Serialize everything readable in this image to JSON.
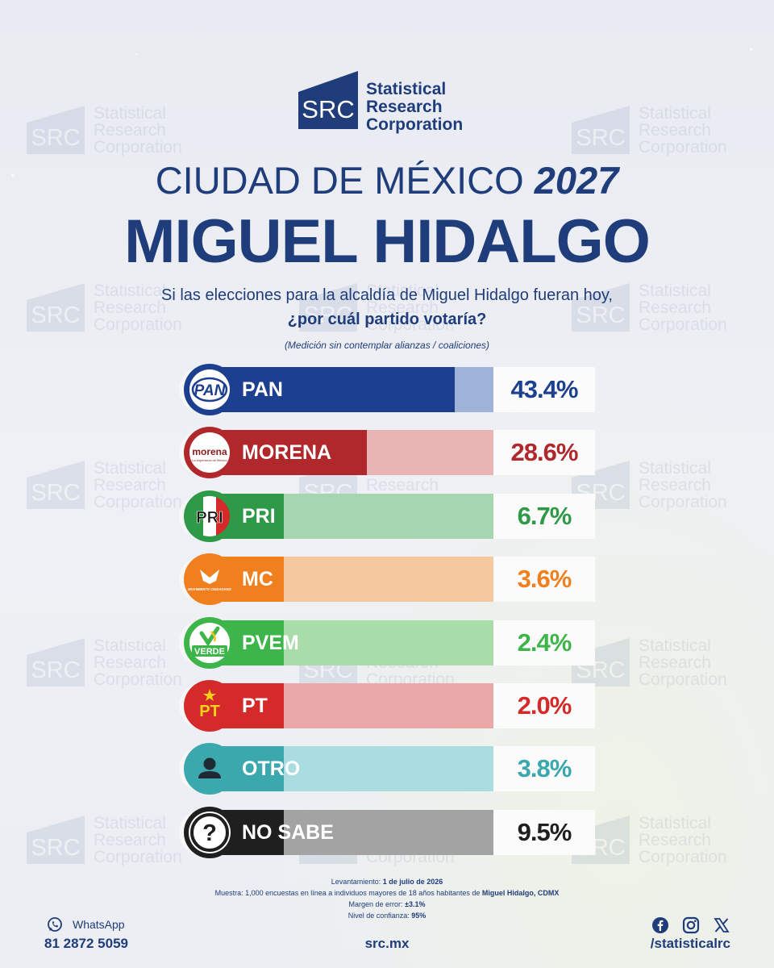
{
  "brand": {
    "logo_mark": "SRC",
    "name_lines": [
      "Statistical",
      "Research",
      "Corporation"
    ]
  },
  "title": {
    "line1_prefix": "CIUDAD DE MÉXICO",
    "line1_year": "2027",
    "line2": "MIGUEL HIDALGO"
  },
  "question": {
    "line1": "Si las elecciones para la alcaldía de Miguel Hidalgo fueran hoy,",
    "line2": "¿por cuál partido votaría?",
    "note": "(Medición sin contemplar alianzas / coaliciones)"
  },
  "chart_data": {
    "type": "bar",
    "orientation": "horizontal",
    "categories": [
      "PAN",
      "MORENA",
      "PRI",
      "MC",
      "PVEM",
      "PT",
      "OTRO",
      "NO SABE"
    ],
    "values": [
      43.4,
      28.6,
      6.7,
      3.6,
      2.4,
      2.0,
      3.8,
      9.5
    ],
    "value_labels": [
      "43.4%",
      "28.6%",
      "6.7%",
      "3.6%",
      "2.4%",
      "2.0%",
      "3.8%",
      "9.5%"
    ],
    "xlim": [
      0,
      50
    ],
    "colors": [
      "#1c3f8f",
      "#b0282c",
      "#2e9a47",
      "#f07f1e",
      "#3eb54a",
      "#d42a2a",
      "#3aa8ad",
      "#1f1f1f"
    ],
    "track_colors": [
      "#9fb2d8",
      "#e9b5b4",
      "#a5d6b0",
      "#f6c8a0",
      "#a8dca9",
      "#eaa8a8",
      "#a9dde0",
      "#a3a3a3"
    ],
    "badge_text": [
      "PAN",
      "morena",
      "PRI",
      "MOVIMIENTO CIUDADANO",
      "VERDE",
      "PT",
      "",
      "?"
    ],
    "badge_subtext": [
      "",
      "La esperanza de México",
      "",
      "",
      "",
      "",
      "",
      ""
    ]
  },
  "footer": {
    "survey_date_label": "Levantamiento:",
    "survey_date": "1 de julio de 2026",
    "sample_label": "Muestra:",
    "sample_text": "1,000 encuestas en línea a individuos mayores de 18 años habitantes de",
    "sample_place": "Miguel Hidalgo, CDMX",
    "margin_label": "Margen de error:",
    "margin_value": "±3.1%",
    "confidence_label": "Nivel de confianza:",
    "confidence_value": "95%",
    "whatsapp_label": "WhatsApp",
    "whatsapp_number": "81 2872 5059",
    "website": "src.mx",
    "social_handle": "/statisticalrc",
    "social_icons": [
      "facebook-icon",
      "instagram-icon",
      "x-icon"
    ]
  },
  "watermark": {
    "mark": "SRC",
    "lines": [
      "Statistical",
      "Research",
      "Corporation"
    ]
  }
}
